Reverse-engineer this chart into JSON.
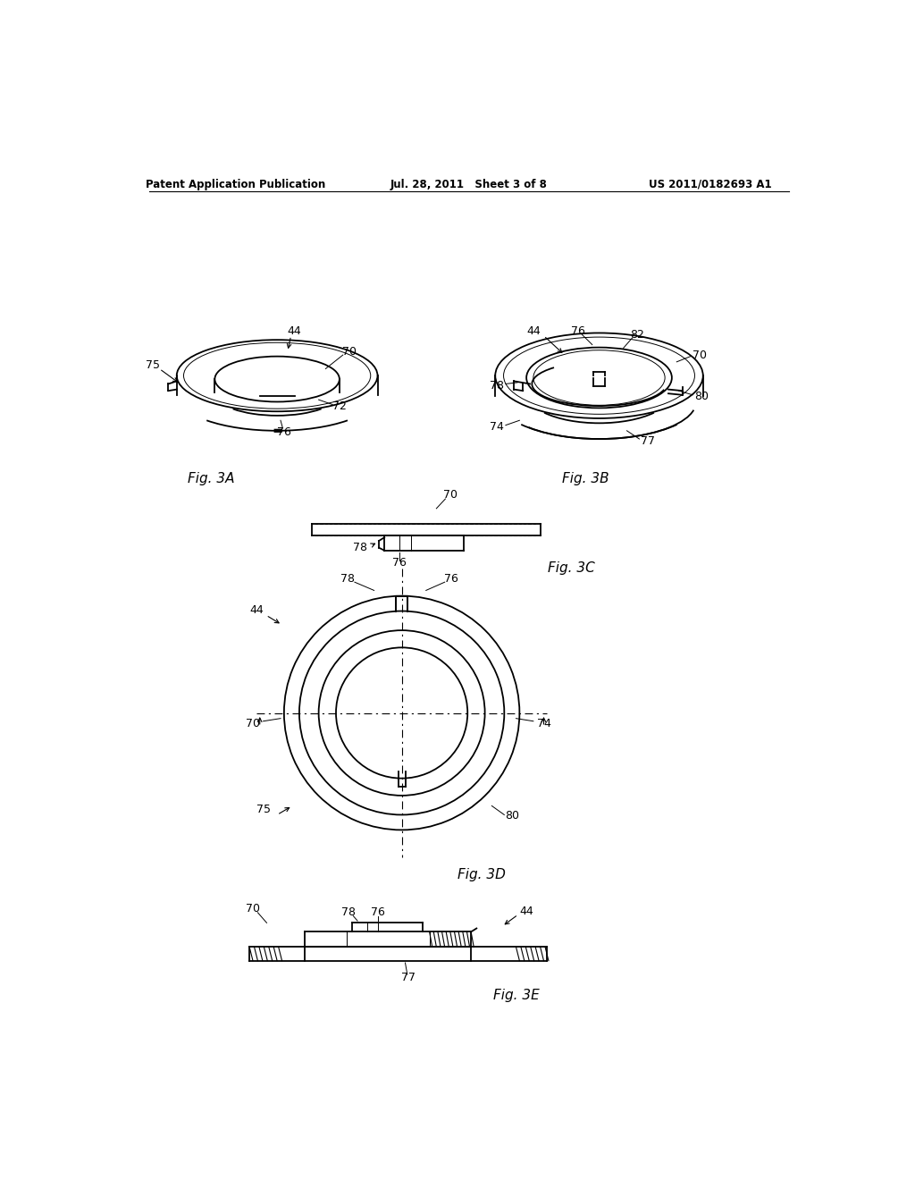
{
  "bg_color": "#ffffff",
  "header_left": "Patent Application Publication",
  "header_mid": "Jul. 28, 2011   Sheet 3 of 8",
  "header_right": "US 2011/0182693 A1",
  "line_color": "#000000",
  "line_width": 1.3,
  "thin_line": 0.7
}
